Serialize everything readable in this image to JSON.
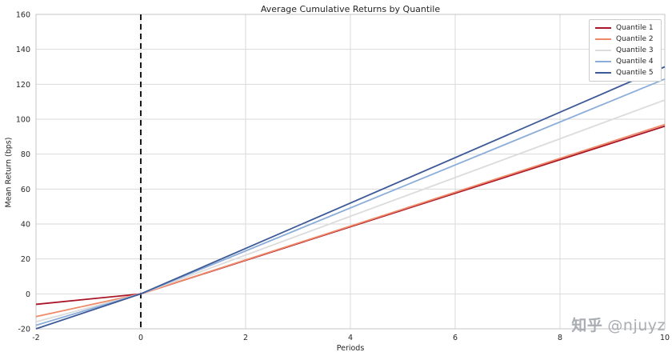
{
  "chart_data": {
    "type": "line",
    "title": "Average Cumulative Returns by Quantile",
    "xlabel": "Periods",
    "ylabel": "Mean Return (bps)",
    "xlim": [
      -2,
      10
    ],
    "ylim": [
      -20,
      160
    ],
    "xticks": [
      -2,
      0,
      2,
      4,
      6,
      8,
      10
    ],
    "yticks": [
      -20,
      0,
      20,
      40,
      60,
      80,
      100,
      120,
      140,
      160
    ],
    "grid": true,
    "grid_color": "#dadada",
    "spine_color": "#c4c4c4",
    "legend_position": "upper right",
    "event_line": {
      "x": 0,
      "color": "#000000",
      "dash": "7 5"
    },
    "x": [
      -2,
      0,
      10
    ],
    "series": [
      {
        "name": "Quantile 1",
        "color": "#aa1628",
        "values": [
          -6,
          0,
          96
        ]
      },
      {
        "name": "Quantile 2",
        "color": "#ef8a68",
        "values": [
          -13,
          0,
          97
        ]
      },
      {
        "name": "Quantile 3",
        "color": "#dcdcdc",
        "values": [
          -16,
          0,
          111
        ]
      },
      {
        "name": "Quantile 4",
        "color": "#8badd9",
        "values": [
          -18,
          0,
          123
        ]
      },
      {
        "name": "Quantile 5",
        "color": "#3d5a98",
        "values": [
          -20,
          0,
          130
        ]
      }
    ]
  },
  "watermark": {
    "brand": "知乎",
    "handle": "@njuyz"
  }
}
